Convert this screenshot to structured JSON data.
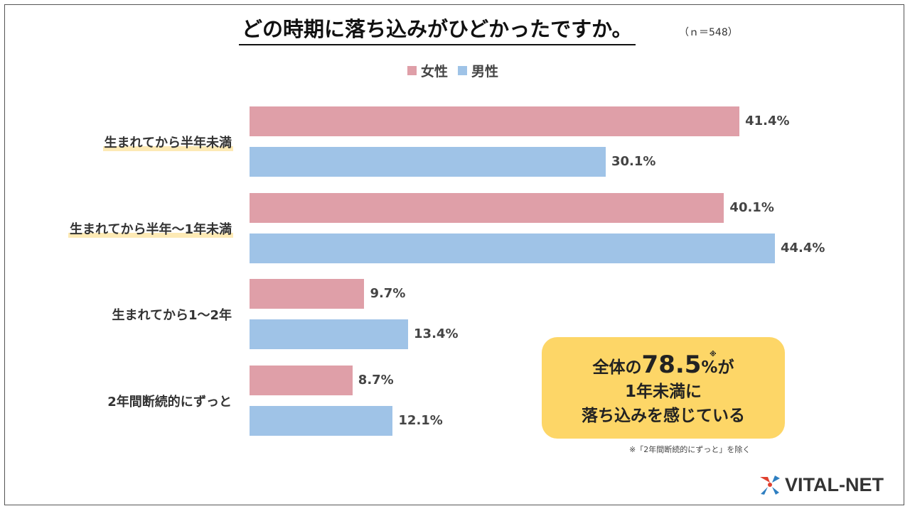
{
  "title": "どの時期に落ち込みがひどかったですか。",
  "sample_note": "（ｎ＝548）",
  "colors": {
    "female": "#df9fa8",
    "male": "#9fc3e7",
    "callout": "#fdd667",
    "highlight": "#fdeab5"
  },
  "chart_data": {
    "type": "bar",
    "orientation": "horizontal",
    "title": "どの時期に落ち込みがひどかったですか。",
    "categories": [
      "生まれてから半年未満",
      "生まれてから半年～1年未満",
      "生まれてから1～2年",
      "2年間断続的にずっと"
    ],
    "series": [
      {
        "name": "女性",
        "values": [
          41.4,
          40.1,
          9.7,
          8.7
        ]
      },
      {
        "name": "男性",
        "values": [
          30.1,
          44.4,
          13.4,
          12.1
        ]
      }
    ],
    "labels": [
      [
        "41.4%",
        "30.1%"
      ],
      [
        "40.1%",
        "44.4%"
      ],
      [
        "9.7%",
        "13.4%"
      ],
      [
        "8.7%",
        "12.1%"
      ]
    ],
    "xlim": [
      0,
      45
    ],
    "legend": "top-center",
    "grid": false
  },
  "callout": {
    "line1_pre": "全体の",
    "line1_num": "78.5",
    "line1_post": "%が",
    "mark": "※",
    "line2": "1年未満に",
    "line3": "落ち込みを感じている"
  },
  "footnote": "※「2年間断続的にずっと」を除く",
  "brand": {
    "name": "VITAL-NET",
    "icon": "vitalnet-logo-icon"
  }
}
